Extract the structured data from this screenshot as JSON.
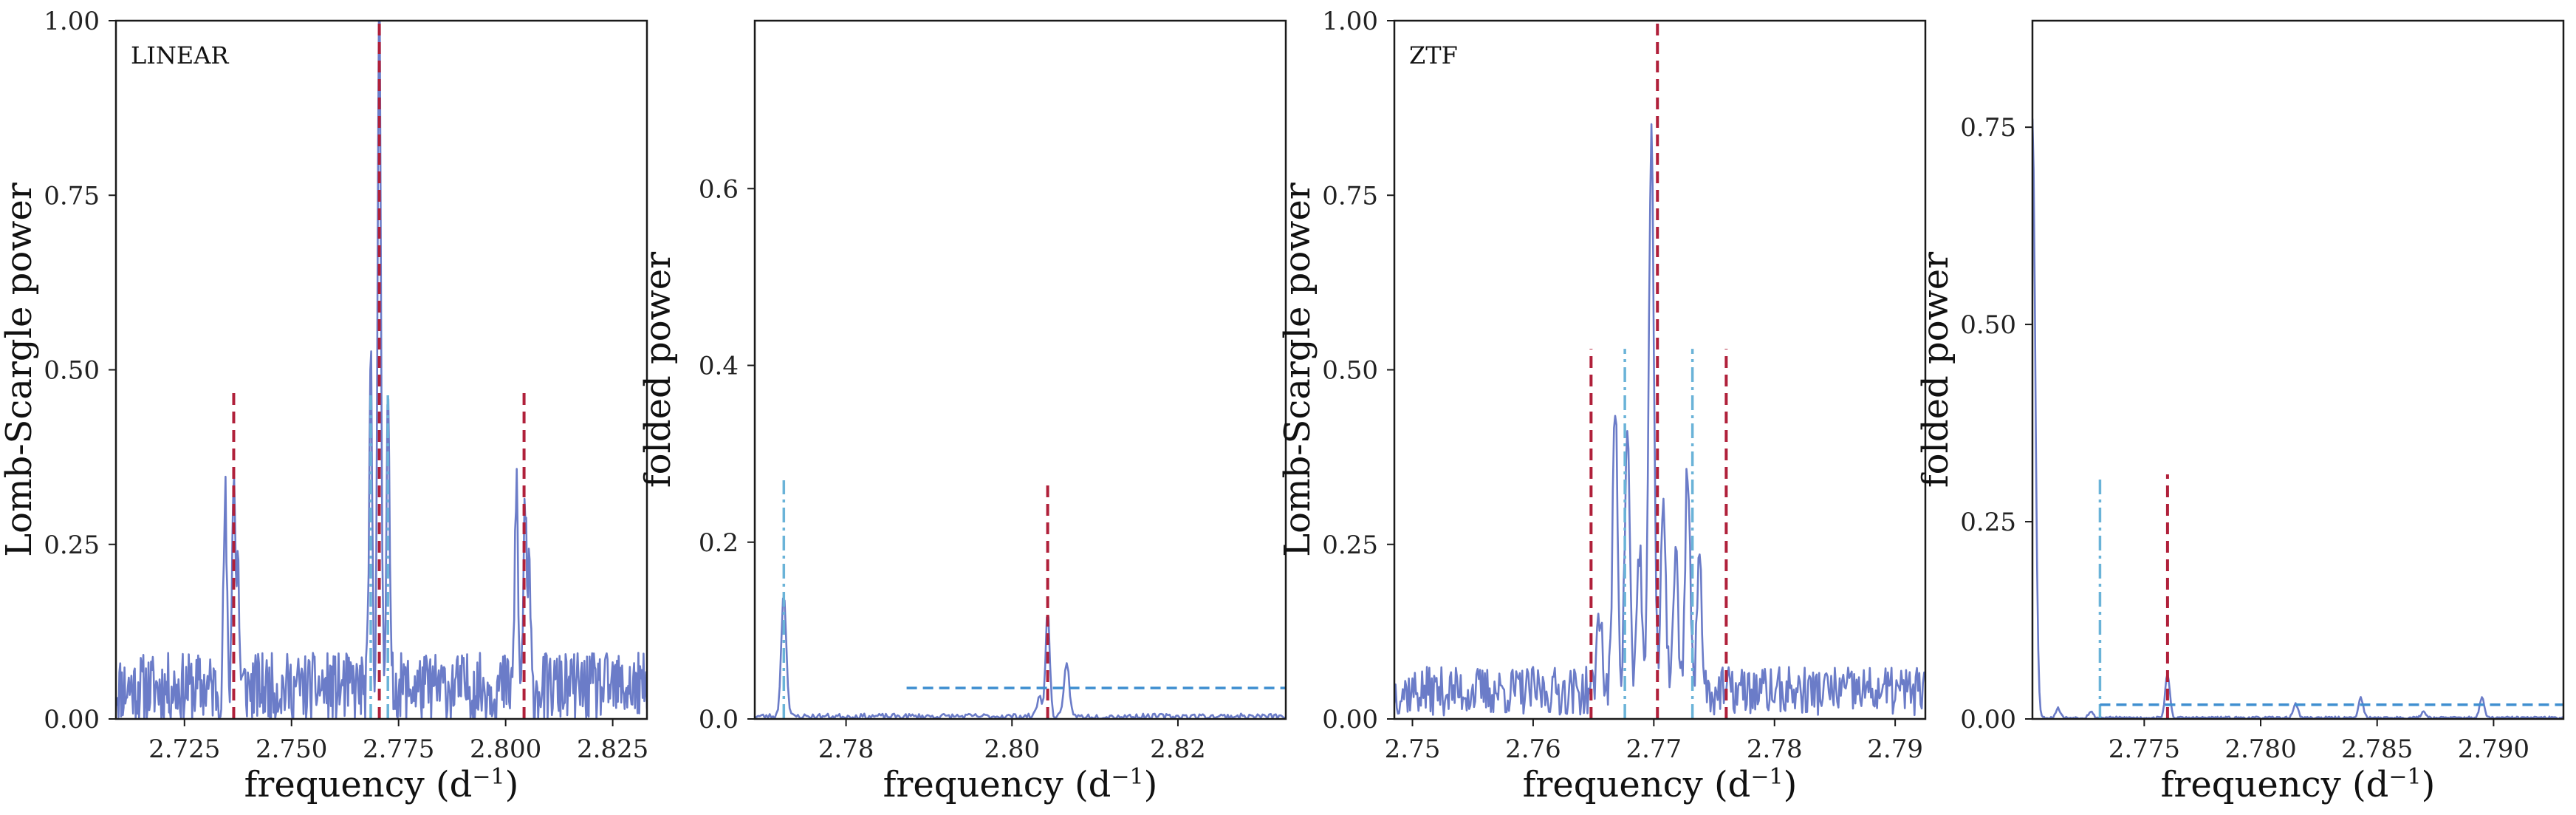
{
  "colors": {
    "signal": "#6b7cc8",
    "red_dash": "#b0203a",
    "blue_dashdot": "#6ab3d8",
    "threshold": "#3f8fd0"
  },
  "chart_data": [
    {
      "type": "line",
      "panel_label": "LINEAR",
      "xlabel": "frequency (d",
      "xlabel_sup": "−1",
      "xlabel_end": ")",
      "ylabel": "Lomb-Scargle power",
      "xlim": [
        2.709,
        2.833
      ],
      "ylim": [
        0,
        1
      ],
      "xticks": [
        2.725,
        2.75,
        2.775,
        2.8,
        2.825
      ],
      "xtick_labels": [
        "2.725",
        "2.750",
        "2.775",
        "2.800",
        "2.825"
      ],
      "yticks": [
        0,
        0.25,
        0.5,
        0.75,
        1.0
      ],
      "ytick_labels": [
        "0.00",
        "0.25",
        "0.50",
        "0.75",
        "1.00"
      ],
      "peaks": [
        {
          "x": 2.7345,
          "y": 0.27,
          "w": 0.00035
        },
        {
          "x": 2.7365,
          "y": 0.33,
          "w": 0.00035
        },
        {
          "x": 2.7375,
          "y": 0.18,
          "w": 0.0003
        },
        {
          "x": 2.7685,
          "y": 0.46,
          "w": 0.00035
        },
        {
          "x": 2.7705,
          "y": 0.95,
          "w": 0.0004
        },
        {
          "x": 2.7725,
          "y": 0.44,
          "w": 0.00035
        },
        {
          "x": 2.8025,
          "y": 0.3,
          "w": 0.00035
        },
        {
          "x": 2.8045,
          "y": 0.27,
          "w": 0.00035
        },
        {
          "x": 2.8055,
          "y": 0.16,
          "w": 0.0003
        }
      ],
      "noise": {
        "level": 0.045,
        "amp": 0.05,
        "step": 0.0002,
        "seed": 11
      },
      "vlines": [
        {
          "x": 2.7705,
          "y0": 0,
          "y1": 1.0,
          "style": "red_dash"
        },
        {
          "x": 2.7365,
          "y0": 0,
          "y1": 0.47,
          "style": "red_dash"
        },
        {
          "x": 2.8043,
          "y0": 0,
          "y1": 0.47,
          "style": "red_dash"
        },
        {
          "x": 2.7685,
          "y0": 0,
          "y1": 0.47,
          "style": "blue_dashdot"
        },
        {
          "x": 2.7725,
          "y0": 0,
          "y1": 0.47,
          "style": "blue_dashdot"
        }
      ],
      "hlines": []
    },
    {
      "type": "line",
      "panel_label": "",
      "xlabel": "frequency (d",
      "xlabel_sup": "−1",
      "xlabel_end": ")",
      "ylabel": "folded power",
      "xlim": [
        2.769,
        2.833
      ],
      "ylim": [
        0,
        0.79
      ],
      "xticks": [
        2.78,
        2.8,
        2.82
      ],
      "xtick_labels": [
        "2.78",
        "2.80",
        "2.82"
      ],
      "yticks": [
        0,
        0.2,
        0.4,
        0.6
      ],
      "ytick_labels": [
        "0.0",
        "0.2",
        "0.4",
        "0.6"
      ],
      "peaks": [
        {
          "x": 2.7725,
          "y": 0.14,
          "w": 0.0003
        },
        {
          "x": 2.8033,
          "y": 0.022,
          "w": 0.0003
        },
        {
          "x": 2.8043,
          "y": 0.12,
          "w": 0.00025
        },
        {
          "x": 2.8066,
          "y": 0.062,
          "w": 0.0003
        }
      ],
      "noise": {
        "level": 0.003,
        "amp": 0.003,
        "step": 0.0002,
        "seed": 23
      },
      "vlines": [
        {
          "x": 2.7725,
          "y0": 0,
          "y1": 0.27,
          "style": "blue_dashdot"
        },
        {
          "x": 2.8043,
          "y0": 0,
          "y1": 0.27,
          "style": "red_dash"
        }
      ],
      "hlines": [
        {
          "y": 0.035,
          "x0": 2.7873,
          "x1": 2.833,
          "style": "threshold"
        }
      ]
    },
    {
      "type": "line",
      "panel_label": "ZTF",
      "xlabel": "frequency (d",
      "xlabel_sup": "−1",
      "xlabel_end": ")",
      "ylabel": "Lomb-Scargle power",
      "xlim": [
        2.7485,
        2.7925
      ],
      "ylim": [
        0,
        1
      ],
      "xticks": [
        2.75,
        2.76,
        2.77,
        2.78,
        2.79
      ],
      "xtick_labels": [
        "2.75",
        "2.76",
        "2.77",
        "2.78",
        "2.79"
      ],
      "yticks": [
        0,
        0.25,
        0.5,
        0.75,
        1.0
      ],
      "ytick_labels": [
        "0.00",
        "0.25",
        "0.50",
        "0.75",
        "1.00"
      ],
      "peaks": [
        {
          "x": 2.7668,
          "y": 0.42,
          "w": 0.0002
        },
        {
          "x": 2.7678,
          "y": 0.38,
          "w": 0.0002
        },
        {
          "x": 2.7688,
          "y": 0.21,
          "w": 0.0002
        },
        {
          "x": 2.7698,
          "y": 0.83,
          "w": 0.0002
        },
        {
          "x": 2.7708,
          "y": 0.28,
          "w": 0.0002
        },
        {
          "x": 2.7718,
          "y": 0.2,
          "w": 0.0002
        },
        {
          "x": 2.7728,
          "y": 0.33,
          "w": 0.0002
        },
        {
          "x": 2.7738,
          "y": 0.19,
          "w": 0.0002
        },
        {
          "x": 2.7655,
          "y": 0.12,
          "w": 0.0002
        }
      ],
      "noise": {
        "level": 0.04,
        "amp": 0.035,
        "step": 0.0001,
        "seed": 37
      },
      "vlines": [
        {
          "x": 2.7703,
          "y0": 0,
          "y1": 1.0,
          "style": "red_dash"
        },
        {
          "x": 2.7648,
          "y0": 0,
          "y1": 0.53,
          "style": "red_dash"
        },
        {
          "x": 2.776,
          "y0": 0,
          "y1": 0.53,
          "style": "red_dash"
        },
        {
          "x": 2.7676,
          "y0": 0,
          "y1": 0.53,
          "style": "blue_dashdot"
        },
        {
          "x": 2.7732,
          "y0": 0,
          "y1": 0.53,
          "style": "blue_dashdot"
        }
      ],
      "hlines": []
    },
    {
      "type": "line",
      "panel_label": "",
      "xlabel": "frequency (d",
      "xlabel_sup": "−1",
      "xlabel_end": ")",
      "ylabel": "folded power",
      "xlim": [
        2.7702,
        2.793
      ],
      "ylim": [
        0,
        0.885
      ],
      "xticks": [
        2.775,
        2.78,
        2.785,
        2.79
      ],
      "xtick_labels": [
        "2.775",
        "2.780",
        "2.785",
        "2.790"
      ],
      "yticks": [
        0,
        0.25,
        0.5,
        0.75
      ],
      "ytick_labels": [
        "0.00",
        "0.25",
        "0.50",
        "0.75"
      ],
      "peaks": [
        {
          "x": 2.7702,
          "y": 0.76,
          "w": 0.00012
        },
        {
          "x": 2.7713,
          "y": 0.012,
          "w": 0.0001
        },
        {
          "x": 2.7727,
          "y": 0.008,
          "w": 0.0001
        },
        {
          "x": 2.776,
          "y": 0.055,
          "w": 0.0001
        },
        {
          "x": 2.7815,
          "y": 0.018,
          "w": 0.0001
        },
        {
          "x": 2.7843,
          "y": 0.025,
          "w": 0.0001
        },
        {
          "x": 2.7895,
          "y": 0.025,
          "w": 0.0001
        },
        {
          "x": 2.787,
          "y": 0.008,
          "w": 0.0001
        }
      ],
      "noise": {
        "level": 0.0015,
        "amp": 0.0015,
        "step": 5e-05,
        "seed": 53
      },
      "vlines": [
        {
          "x": 2.7731,
          "y0": 0,
          "y1": 0.31,
          "style": "blue_dashdot"
        },
        {
          "x": 2.776,
          "y0": 0,
          "y1": 0.31,
          "style": "red_dash"
        }
      ],
      "hlines": [
        {
          "y": 0.018,
          "x0": 2.7731,
          "x1": 2.793,
          "style": "threshold"
        }
      ]
    }
  ]
}
